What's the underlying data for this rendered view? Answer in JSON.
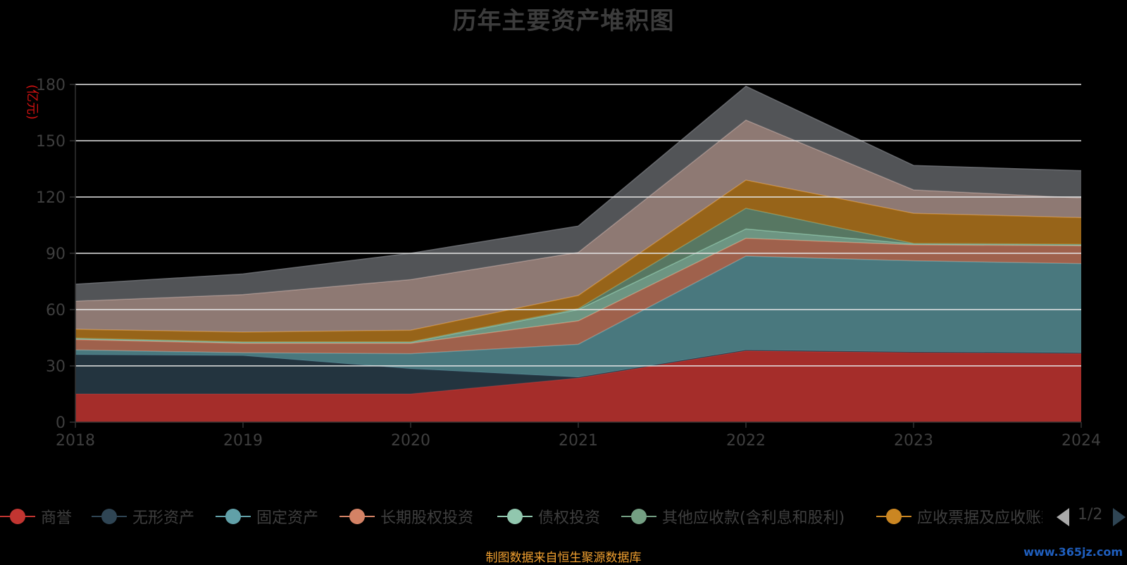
{
  "chart_data": {
    "type": "area",
    "stacked": true,
    "title": "历年主要资产堆积图",
    "ylabel": "(亿元)",
    "ylim": [
      0,
      180
    ],
    "yticks": [
      0,
      30,
      60,
      90,
      120,
      150,
      180
    ],
    "categories": [
      "2018",
      "2019",
      "2020",
      "2021",
      "2022",
      "2023",
      "2024"
    ],
    "grid": true,
    "series": [
      {
        "name": "商誉",
        "color": "#c23531",
        "values": [
          15,
          15,
          15,
          23.5,
          38,
          37,
          36.5
        ]
      },
      {
        "name": "无形资产",
        "color": "#2f4554",
        "values": [
          21,
          20.5,
          13.5,
          0.5,
          0.5,
          0.5,
          0.5
        ]
      },
      {
        "name": "固定资产",
        "color": "#61a0a8",
        "values": [
          2.5,
          1.5,
          8,
          17.5,
          50,
          48.5,
          47.5
        ]
      },
      {
        "name": "长期股权投资",
        "color": "#d48265",
        "values": [
          5.5,
          5,
          5.5,
          12.5,
          9.5,
          8.5,
          9.5
        ]
      },
      {
        "name": "债权投资",
        "color": "#91c7ae",
        "values": [
          0.5,
          0.5,
          0.5,
          6,
          5,
          0.5,
          0.5
        ]
      },
      {
        "name": "其他应收款(含利息和股利)",
        "color": "#749f83",
        "values": [
          0.3,
          0.3,
          0.3,
          0.5,
          11,
          0.3,
          0.3
        ]
      },
      {
        "name": "应收票据及应收账款",
        "color": "#ca8622",
        "values": [
          4.7,
          5.2,
          6.2,
          7,
          15,
          16,
          14.2
        ]
      },
      {
        "name": "",
        "color": "#bda29a",
        "values": [
          15,
          20,
          27,
          23,
          32,
          12.5,
          10.5
        ]
      },
      {
        "name": "",
        "color": "#6e7074",
        "values": [
          9,
          11,
          14,
          14,
          18,
          13,
          14.5
        ]
      }
    ]
  },
  "legend": {
    "items": [
      {
        "label": "商誉",
        "color": "#c23531"
      },
      {
        "label": "无形资产",
        "color": "#2f4554"
      },
      {
        "label": "固定资产",
        "color": "#61a0a8"
      },
      {
        "label": "长期股权投资",
        "color": "#d48265"
      },
      {
        "label": "债权投资",
        "color": "#91c7ae"
      },
      {
        "label": "其他应收款(含利息和股利)",
        "color": "#749f83"
      },
      {
        "label": "应收票据及应收账款",
        "color": "#ca8622"
      }
    ],
    "pager": "1/2"
  },
  "source_note": "制图数据来自恒生聚源数据库",
  "watermark": "www.365jz.com"
}
